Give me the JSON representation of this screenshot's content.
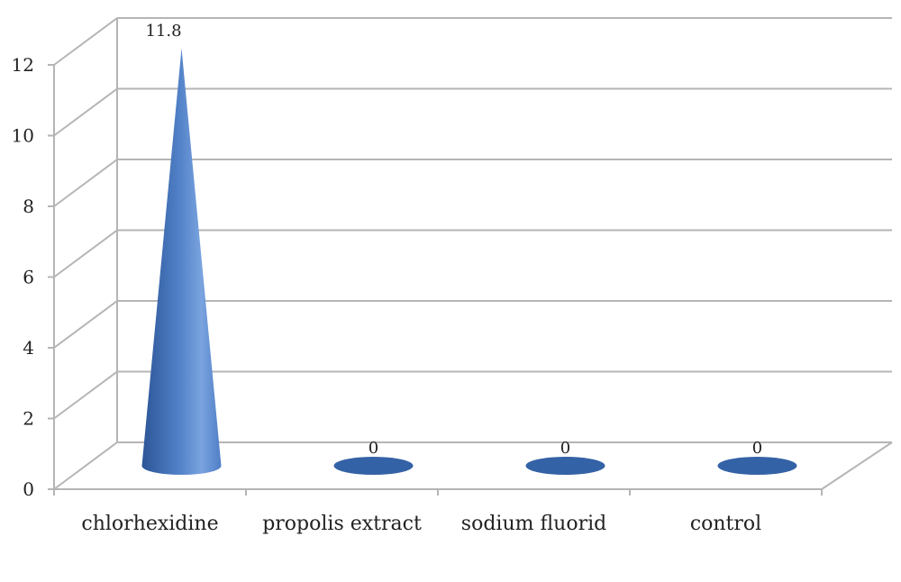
{
  "chart_data": {
    "type": "bar",
    "bar_shape": "cone",
    "categories": [
      "chlorhexidine",
      "propolis extract",
      "sodium fluorid",
      "control"
    ],
    "values": [
      11.8,
      0,
      0,
      0
    ],
    "data_labels": [
      "11.8",
      "0",
      "0",
      "0"
    ],
    "title": "",
    "xlabel": "",
    "ylabel": "",
    "ylim": [
      0,
      12
    ],
    "yticks": [
      0,
      2,
      4,
      6,
      8,
      10,
      12
    ],
    "ytick_labels": [
      "0",
      "2",
      "4",
      "6",
      "8",
      "10",
      "12"
    ],
    "grid": true,
    "legend": "none",
    "colors": {
      "bar_light": "#7aa3df",
      "bar_mid": "#4f7fc6",
      "bar_dark": "#2c5596",
      "base_disc": "#3462a6",
      "grid": "#b5b5b5"
    }
  }
}
